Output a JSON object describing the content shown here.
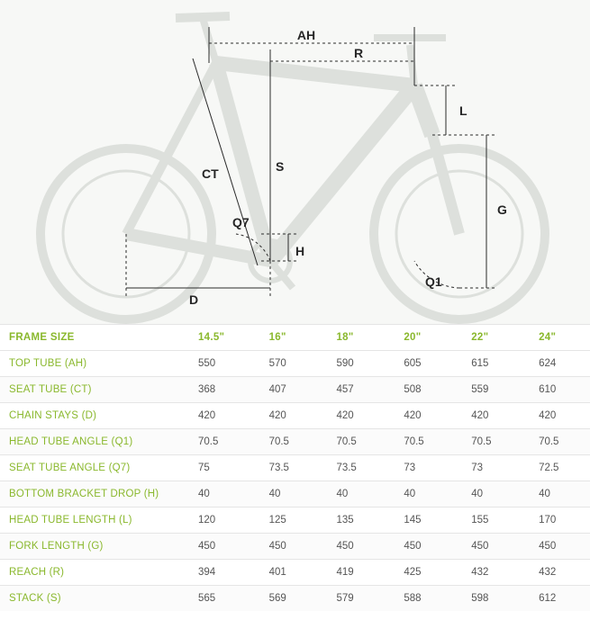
{
  "diagram": {
    "type": "engineering-dimension-drawing",
    "labels": [
      "AH",
      "R",
      "L",
      "G",
      "Q1",
      "H",
      "D",
      "CT",
      "S",
      "Q7"
    ],
    "line_color": "#2b2b2b",
    "line_width": 1,
    "dash": "3,3",
    "bike_tint": "#c8cdc7",
    "background_color": "#f7f8f6",
    "label_color": "#262626",
    "label_fontsize": 14
  },
  "table": {
    "header_color": "#8ab82d",
    "value_color": "#555555",
    "row_border": "#e5e5e5",
    "alt_row": "#fbfbfb",
    "fontsize": 11.5,
    "header": [
      "FRAME SIZE",
      "14.5\"",
      "16\"",
      "18\"",
      "20\"",
      "22\"",
      "24\""
    ],
    "rows": [
      {
        "label": "TOP TUBE (AH)",
        "vals": [
          "550",
          "570",
          "590",
          "605",
          "615",
          "624"
        ]
      },
      {
        "label": "SEAT TUBE (CT)",
        "vals": [
          "368",
          "407",
          "457",
          "508",
          "559",
          "610"
        ]
      },
      {
        "label": "CHAIN STAYS (D)",
        "vals": [
          "420",
          "420",
          "420",
          "420",
          "420",
          "420"
        ]
      },
      {
        "label": "HEAD TUBE ANGLE (Q1)",
        "vals": [
          "70.5",
          "70.5",
          "70.5",
          "70.5",
          "70.5",
          "70.5"
        ]
      },
      {
        "label": "SEAT TUBE ANGLE (Q7)",
        "vals": [
          "75",
          "73.5",
          "73.5",
          "73",
          "73",
          "72.5"
        ]
      },
      {
        "label": "BOTTOM BRACKET DROP (H)",
        "vals": [
          "40",
          "40",
          "40",
          "40",
          "40",
          "40"
        ]
      },
      {
        "label": "HEAD TUBE LENGTH (L)",
        "vals": [
          "120",
          "125",
          "135",
          "145",
          "155",
          "170"
        ]
      },
      {
        "label": "FORK LENGTH (G)",
        "vals": [
          "450",
          "450",
          "450",
          "450",
          "450",
          "450"
        ]
      },
      {
        "label": "REACH (R)",
        "vals": [
          "394",
          "401",
          "419",
          "425",
          "432",
          "432"
        ]
      },
      {
        "label": "STACK (S)",
        "vals": [
          "565",
          "569",
          "579",
          "588",
          "598",
          "612"
        ]
      }
    ]
  }
}
